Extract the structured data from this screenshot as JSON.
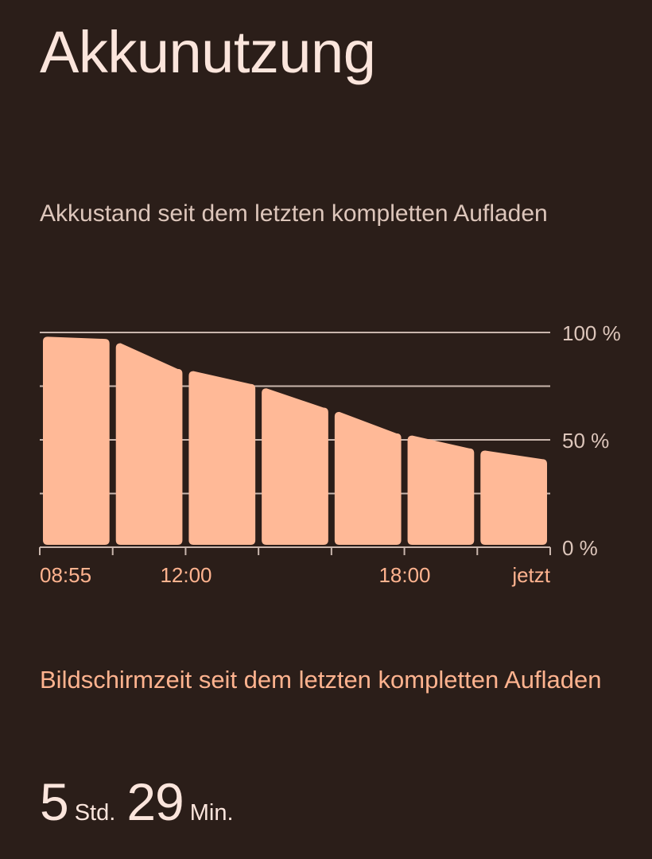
{
  "page": {
    "title": "Akkunutzung"
  },
  "battery_section": {
    "caption": "Akkustand seit dem letzten kompletten Aufladen"
  },
  "chart_data": {
    "type": "area",
    "title": "",
    "xlabel": "",
    "ylabel": "",
    "y_axis_side": "right",
    "ylim": [
      0,
      100
    ],
    "y_tick_labels": [
      "0 %",
      "50 %",
      "100 %"
    ],
    "y_ticks": [
      0,
      50,
      100
    ],
    "gridlines_at": [
      25,
      50,
      75,
      100
    ],
    "x_tick_labels": [
      "08:55",
      "12:00",
      "18:00",
      "jetzt"
    ],
    "segments": [
      {
        "start": 98,
        "end": 97
      },
      {
        "start": 95,
        "end": 83
      },
      {
        "start": 82,
        "end": 76
      },
      {
        "start": 74,
        "end": 65
      },
      {
        "start": 63,
        "end": 53
      },
      {
        "start": 52,
        "end": 46
      },
      {
        "start": 45,
        "end": 41
      }
    ],
    "colors": {
      "bar": "#ffb997",
      "grid": "#c9b6ad",
      "x_label": "#ffb38f",
      "y_label": "#ddc6bb"
    }
  },
  "screen_section": {
    "caption": "Bildschirmzeit seit dem letzten kompletten Aufladen",
    "hours": "5",
    "hours_unit": "Std.",
    "minutes": "29",
    "minutes_unit": "Min."
  },
  "colors": {
    "background": "#2b1e19",
    "title": "#fbe5dc",
    "accent": "#ffb38f"
  }
}
